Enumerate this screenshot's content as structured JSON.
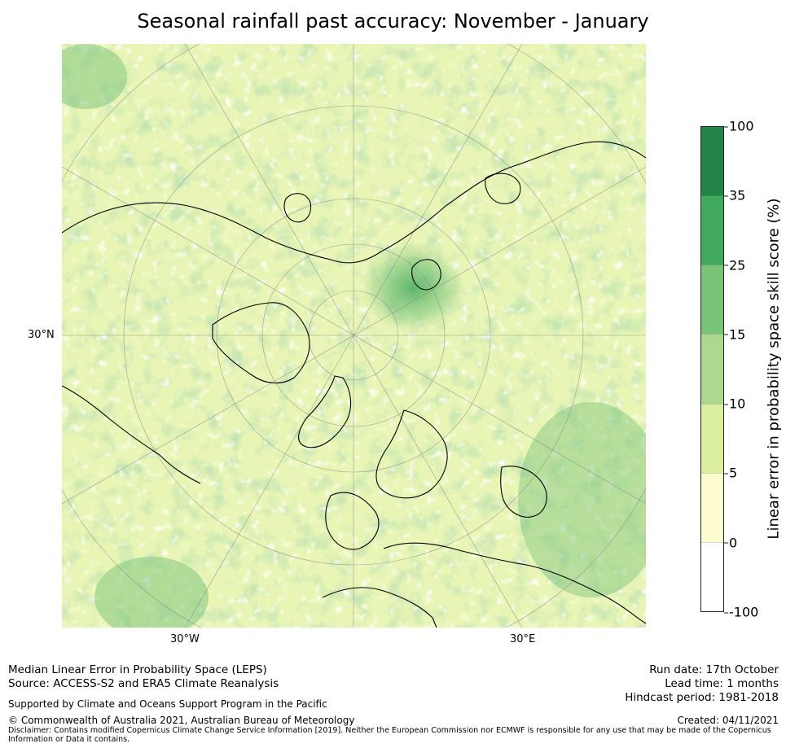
{
  "title": "Seasonal rainfall past accuracy: November - January",
  "map": {
    "projection": "north-polar-stereographic",
    "tick_labels": {
      "lat_left": "30°N",
      "lon_bottom_left": "30°W",
      "lon_bottom_right": "30°E"
    },
    "colors": {
      "ocean_low": "#fdfdd0",
      "land_line": "#000000",
      "graticule": "#888888"
    }
  },
  "colorbar": {
    "label": "Linear error in probability space skill score (%)",
    "ticks": [
      "100",
      "35",
      "25",
      "15",
      "10",
      "5",
      "0",
      "-100"
    ],
    "colors": [
      "#23844a",
      "#41aa5d",
      "#7ac47a",
      "#aed88f",
      "#d9ee9f",
      "#fdfdd0",
      "#ffffff"
    ]
  },
  "footer": {
    "left_line1": "Median Linear Error in Probability Space (LEPS)",
    "left_line2": "Source: ACCESS-S2 and ERA5 Climate Reanalysis",
    "support": "Supported by Climate and Oceans Support Program in the Pacific",
    "copyright": "© Commonwealth of Australia 2021, Australian Bureau of Meteorology",
    "disclaimer_line1": "Disclaimer: Contains modified Copernicus Climate Change Service Information [2019]. Neither the European Commission nor ECMWF is responsible for any use that may be made of the Copernicus",
    "disclaimer_line2": "Information or Data it contains.",
    "run_date": "Run date: 17th October",
    "lead_time": "Lead time: 1 months",
    "hindcast": "Hindcast period: 1981-2018",
    "created": "Created: 04/11/2021"
  }
}
